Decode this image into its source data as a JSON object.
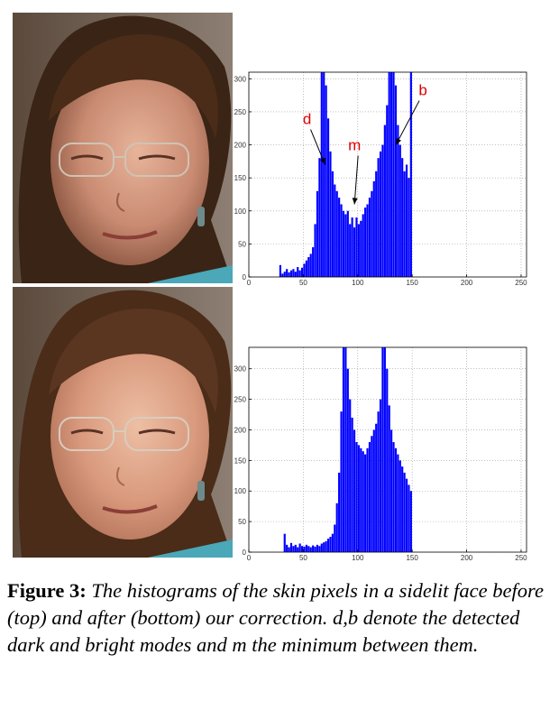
{
  "figure": {
    "label": "Figure 3:",
    "caption": "The histograms of the skin pixels in a sidelit face before (top) and after (bottom) our correction. d,b denote the detected dark and bright modes and m the minimum between them."
  },
  "chart_data": [
    {
      "type": "bar",
      "panel": "top",
      "bar_color": "#0000ff",
      "grid": true,
      "xlim": [
        0,
        255
      ],
      "ylim": [
        0,
        310
      ],
      "xticks": [
        0,
        50,
        100,
        150,
        200,
        250
      ],
      "yticks": [
        0,
        50,
        100,
        150,
        200,
        250,
        300
      ],
      "annotations": [
        {
          "text": "d",
          "x": 70,
          "y": 170
        },
        {
          "text": "m",
          "x": 97,
          "y": 110
        },
        {
          "text": "b",
          "x": 135,
          "y": 200
        }
      ],
      "x": [
        28,
        30,
        32,
        34,
        36,
        38,
        40,
        42,
        44,
        46,
        48,
        50,
        52,
        54,
        56,
        58,
        60,
        62,
        64,
        66,
        68,
        70,
        72,
        74,
        76,
        78,
        80,
        82,
        84,
        86,
        88,
        90,
        92,
        94,
        96,
        98,
        100,
        102,
        104,
        106,
        108,
        110,
        112,
        114,
        116,
        118,
        120,
        122,
        124,
        126,
        128,
        130,
        132,
        134,
        136,
        138,
        140,
        142,
        144,
        146,
        148
      ],
      "values": [
        18,
        5,
        8,
        12,
        7,
        10,
        12,
        8,
        15,
        10,
        14,
        20,
        25,
        30,
        35,
        45,
        80,
        130,
        180,
        310,
        310,
        290,
        240,
        190,
        160,
        140,
        130,
        120,
        110,
        100,
        95,
        100,
        80,
        90,
        75,
        90,
        80,
        85,
        95,
        105,
        110,
        120,
        130,
        145,
        160,
        180,
        190,
        200,
        230,
        260,
        310,
        310,
        310,
        290,
        230,
        200,
        180,
        160,
        170,
        150,
        310
      ]
    },
    {
      "type": "bar",
      "panel": "bottom",
      "bar_color": "#0000ff",
      "grid": true,
      "xlim": [
        0,
        255
      ],
      "ylim": [
        0,
        335
      ],
      "xticks": [
        0,
        50,
        100,
        150,
        200,
        250
      ],
      "yticks": [
        0,
        50,
        100,
        150,
        200,
        250,
        300
      ],
      "x": [
        32,
        34,
        36,
        38,
        40,
        42,
        44,
        46,
        48,
        50,
        52,
        54,
        56,
        58,
        60,
        62,
        64,
        66,
        68,
        70,
        72,
        74,
        76,
        78,
        80,
        82,
        84,
        86,
        88,
        90,
        92,
        94,
        96,
        98,
        100,
        102,
        104,
        106,
        108,
        110,
        112,
        114,
        116,
        118,
        120,
        122,
        124,
        126,
        128,
        130,
        132,
        134,
        136,
        138,
        140,
        142,
        144,
        146,
        148
      ],
      "values": [
        30,
        12,
        8,
        15,
        10,
        12,
        8,
        14,
        10,
        9,
        12,
        10,
        8,
        11,
        9,
        12,
        10,
        14,
        16,
        18,
        22,
        25,
        30,
        45,
        80,
        130,
        230,
        335,
        335,
        300,
        250,
        220,
        200,
        180,
        175,
        170,
        165,
        160,
        170,
        180,
        190,
        200,
        210,
        230,
        250,
        335,
        335,
        300,
        240,
        200,
        180,
        170,
        160,
        150,
        140,
        130,
        120,
        110,
        100
      ]
    }
  ]
}
